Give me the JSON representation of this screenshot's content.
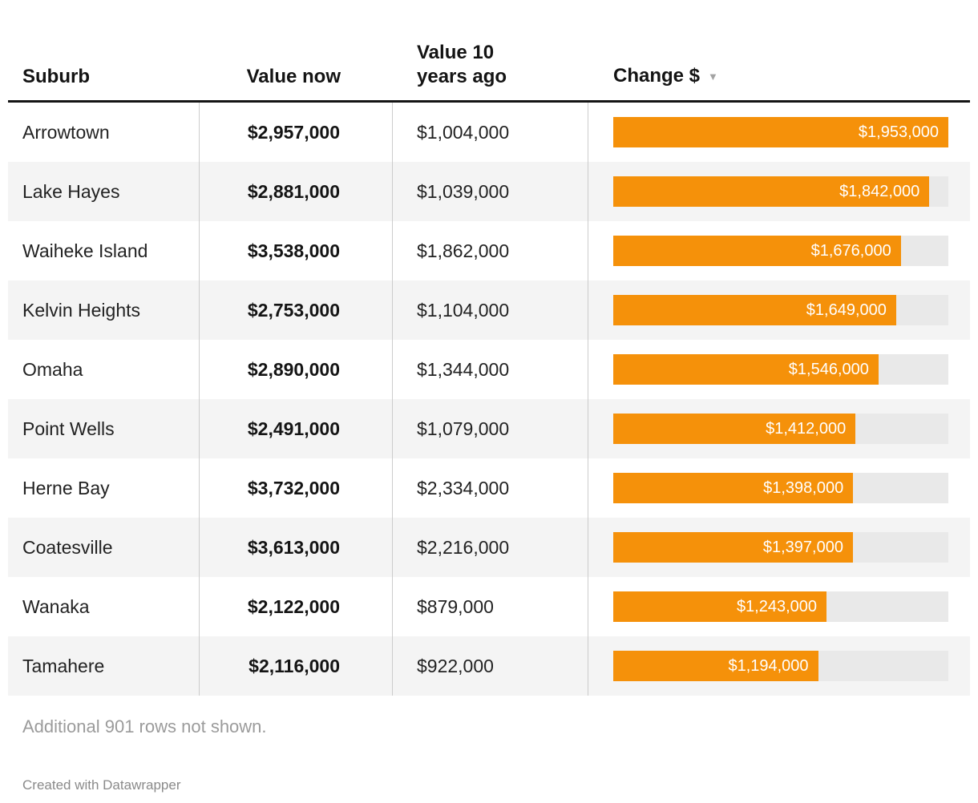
{
  "chart_data": {
    "type": "table",
    "title": "",
    "columns": [
      {
        "label": "Suburb",
        "align": "left"
      },
      {
        "label": "Value now",
        "align": "right"
      },
      {
        "label": "Value 10\nyears ago",
        "align": "left"
      },
      {
        "label": "Change $",
        "align": "left",
        "sort": "desc",
        "display": "bar"
      }
    ],
    "bar_axis_max": 1953000,
    "rows": [
      {
        "suburb": "Arrowtown",
        "value_now": "$2,957,000",
        "value_10y": "$1,004,000",
        "change": 1953000,
        "change_label": "$1,953,000"
      },
      {
        "suburb": "Lake Hayes",
        "value_now": "$2,881,000",
        "value_10y": "$1,039,000",
        "change": 1842000,
        "change_label": "$1,842,000"
      },
      {
        "suburb": "Waiheke Island",
        "value_now": "$3,538,000",
        "value_10y": "$1,862,000",
        "change": 1676000,
        "change_label": "$1,676,000"
      },
      {
        "suburb": "Kelvin Heights",
        "value_now": "$2,753,000",
        "value_10y": "$1,104,000",
        "change": 1649000,
        "change_label": "$1,649,000"
      },
      {
        "suburb": "Omaha",
        "value_now": "$2,890,000",
        "value_10y": "$1,344,000",
        "change": 1546000,
        "change_label": "$1,546,000"
      },
      {
        "suburb": "Point Wells",
        "value_now": "$2,491,000",
        "value_10y": "$1,079,000",
        "change": 1412000,
        "change_label": "$1,412,000"
      },
      {
        "suburb": "Herne Bay",
        "value_now": "$3,732,000",
        "value_10y": "$2,334,000",
        "change": 1398000,
        "change_label": "$1,398,000"
      },
      {
        "suburb": "Coatesville",
        "value_now": "$3,613,000",
        "value_10y": "$2,216,000",
        "change": 1397000,
        "change_label": "$1,397,000"
      },
      {
        "suburb": "Wanaka",
        "value_now": "$2,122,000",
        "value_10y": "$879,000",
        "change": 1243000,
        "change_label": "$1,243,000"
      },
      {
        "suburb": "Tamahere",
        "value_now": "$2,116,000",
        "value_10y": "$922,000",
        "change": 1194000,
        "change_label": "$1,194,000"
      }
    ]
  },
  "sort_icon": "▼",
  "footer": {
    "note": "Additional 901 rows not shown.",
    "credit": "Created with Datawrapper"
  },
  "colors": {
    "bar": "#F5910A",
    "bar_track": "#E9E9E9",
    "row_alt": "#F4F4F4",
    "header_rule": "#141414",
    "grid": "#CCCCCC",
    "muted_text": "#9B9B9B"
  }
}
